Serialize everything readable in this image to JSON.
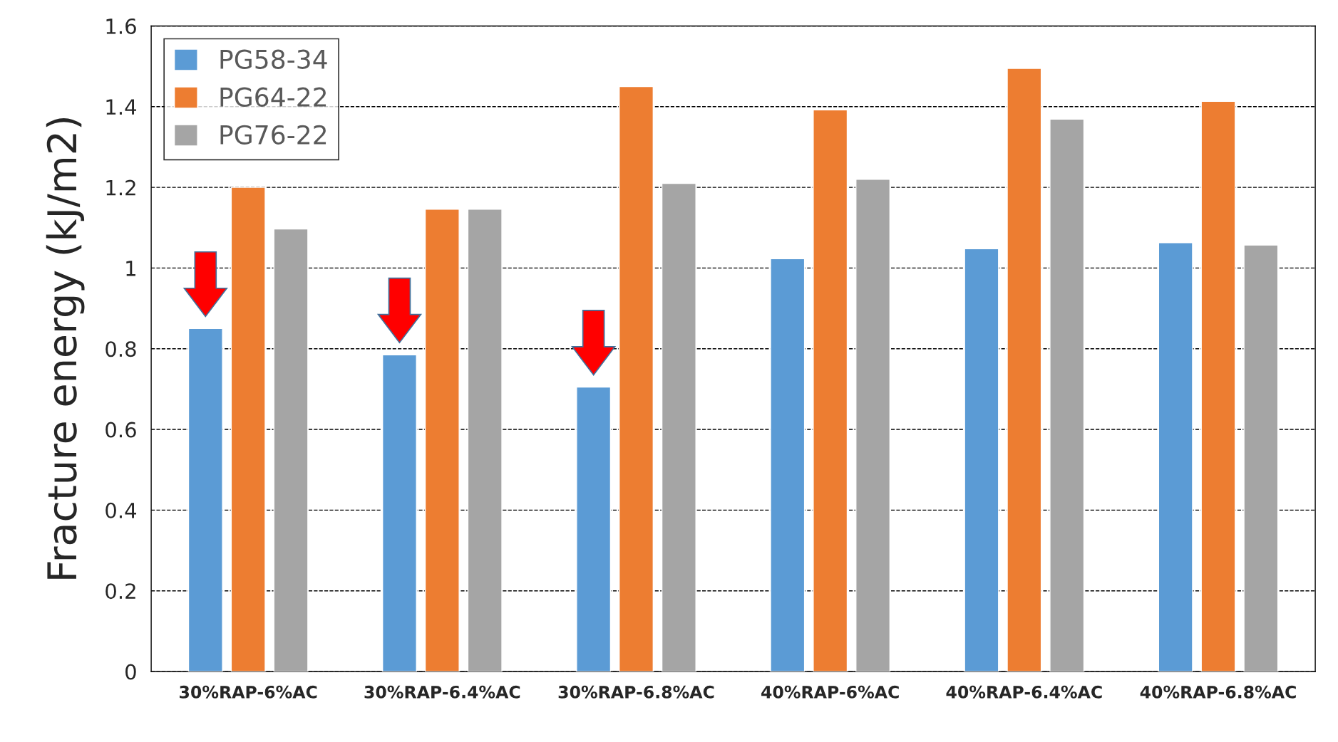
{
  "chart_data": {
    "type": "bar",
    "ylabel": "Fracture energy (kJ/m2)",
    "categories": [
      "30%RAP-6%AC",
      "30%RAP-6.4%AC",
      "30%RAP-6.8%AC",
      "40%RAP-6%AC",
      "40%RAP-6.4%AC",
      "40%RAP-6.8%AC"
    ],
    "series": [
      {
        "name": "PG58-34",
        "color": "#5b9bd5",
        "values": [
          0.85,
          0.785,
          0.705,
          1.023,
          1.048,
          1.063
        ]
      },
      {
        "name": "PG64-22",
        "color": "#ed7d31",
        "values": [
          1.2,
          1.146,
          1.45,
          1.392,
          1.495,
          1.413
        ]
      },
      {
        "name": "PG76-22",
        "color": "#a5a5a5",
        "values": [
          1.097,
          1.146,
          1.21,
          1.22,
          1.369,
          1.057
        ]
      }
    ],
    "ylim": [
      0,
      1.6
    ],
    "yticks": [
      0,
      0.2,
      0.4,
      0.6,
      0.8,
      1,
      1.2,
      1.4,
      1.6
    ],
    "grid": "y",
    "legend": "top left"
  }
}
